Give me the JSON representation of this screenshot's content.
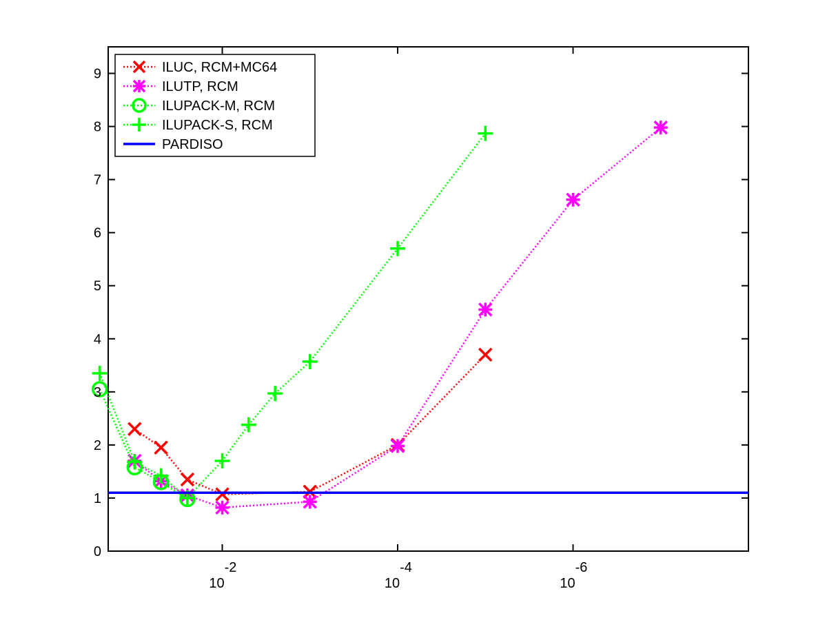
{
  "chart_data": {
    "type": "line",
    "title": "",
    "xlabel": "",
    "ylabel": "",
    "x_scale": "log",
    "x_reversed": true,
    "xlim": [
      0.2,
      1e-08
    ],
    "ylim": [
      0,
      9.5
    ],
    "grid": false,
    "legend_position": "top-left",
    "x_ticks": [
      {
        "value": 0.01,
        "base": "10",
        "exp": "-2"
      },
      {
        "value": 0.0001,
        "base": "10",
        "exp": "-4"
      },
      {
        "value": 1e-06,
        "base": "10",
        "exp": "-6"
      }
    ],
    "y_ticks": [
      "0",
      "1",
      "2",
      "3",
      "4",
      "5",
      "6",
      "7",
      "8",
      "9"
    ],
    "series": [
      {
        "name": "ILUC, RCM+MC64",
        "color": "#ff0000",
        "marker": "x",
        "line": "dotted",
        "points": [
          [
            0.1,
            2.3
          ],
          [
            0.05,
            1.95
          ],
          [
            0.025,
            1.35
          ],
          [
            0.01,
            1.07
          ],
          [
            0.001,
            1.12
          ],
          [
            0.0001,
            2.0
          ],
          [
            1e-05,
            3.7
          ]
        ]
      },
      {
        "name": "ILUTP, RCM",
        "color": "#ff00ff",
        "marker": "star",
        "line": "dotted",
        "points": [
          [
            0.1,
            1.7
          ],
          [
            0.05,
            1.32
          ],
          [
            0.025,
            1.05
          ],
          [
            0.01,
            0.82
          ],
          [
            0.001,
            0.93
          ],
          [
            0.0001,
            1.98
          ],
          [
            1e-05,
            4.55
          ],
          [
            1e-06,
            6.62
          ],
          [
            1e-07,
            7.98
          ]
        ]
      },
      {
        "name": "ILUPACK-M, RCM",
        "color": "#00ff00",
        "marker": "circle",
        "line": "dotted",
        "points": [
          [
            0.25,
            3.05
          ],
          [
            0.1,
            1.58
          ],
          [
            0.05,
            1.3
          ],
          [
            0.025,
            0.98
          ]
        ]
      },
      {
        "name": "ILUPACK-S, RCM",
        "color": "#00ff00",
        "marker": "plus",
        "line": "dotted",
        "points": [
          [
            0.25,
            3.35
          ],
          [
            0.1,
            1.68
          ],
          [
            0.05,
            1.42
          ],
          [
            0.025,
            1.0
          ],
          [
            0.01,
            1.7
          ],
          [
            0.005,
            2.38
          ],
          [
            0.0025,
            2.97
          ],
          [
            0.001,
            3.57
          ],
          [
            0.0001,
            5.7
          ],
          [
            1e-05,
            7.87
          ]
        ]
      },
      {
        "name": "PARDISO",
        "color": "#0000ff",
        "marker": "none",
        "line": "solid",
        "constant_y": 1.1
      }
    ]
  }
}
